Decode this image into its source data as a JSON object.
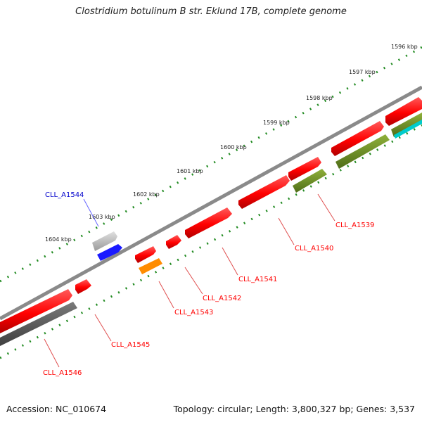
{
  "title": "Clostridium botulinum B str. Eklund 17B, complete genome",
  "accession": "Accession: NC_010674",
  "topology": "Topology: circular; Length: 3,800,327 bp; Genes: 3,537",
  "kbp_labels": [
    "1596 kbp",
    "1597 kbp",
    "1598 kbp",
    "1599 kbp",
    "1600 kbp",
    "1601 kbp",
    "1602 kbp",
    "1603 kbp",
    "1604 kbp"
  ],
  "gene_labels": [
    "CLL_A1539",
    "CLL_A1540",
    "CLL_A1541",
    "CLL_A1542",
    "CLL_A1543",
    "CLL_A1544",
    "CLL_A1545",
    "CLL_A1546"
  ],
  "colors": {
    "cds": "#ff0000",
    "pseudo": "#555555",
    "olive": "#6b8e23",
    "orange": "#ff8c00",
    "blue": "#0000ff",
    "gray": "#bbbbbb",
    "cyan": "#00cccc",
    "backbone": "#777777",
    "tick": "#228b22"
  }
}
